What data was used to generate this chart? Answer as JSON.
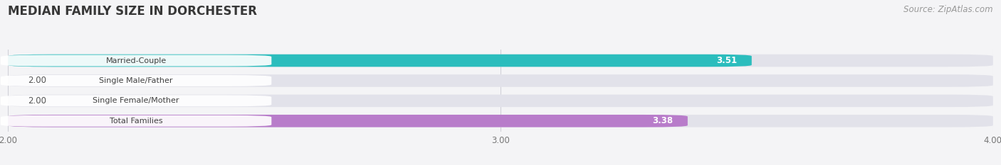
{
  "title": "MEDIAN FAMILY SIZE IN DORCHESTER",
  "source": "Source: ZipAtlas.com",
  "categories": [
    "Married-Couple",
    "Single Male/Father",
    "Single Female/Mother",
    "Total Families"
  ],
  "values": [
    3.51,
    2.0,
    2.0,
    3.38
  ],
  "bar_colors": [
    "#2bbdbd",
    "#90a8e0",
    "#f098aa",
    "#b87cca"
  ],
  "xmin": 2.0,
  "xmax": 4.0,
  "xticks": [
    2.0,
    3.0,
    4.0
  ],
  "background_color": "#f4f4f6",
  "bar_bg_color": "#e2e2ea",
  "title_fontsize": 12,
  "source_fontsize": 8.5
}
